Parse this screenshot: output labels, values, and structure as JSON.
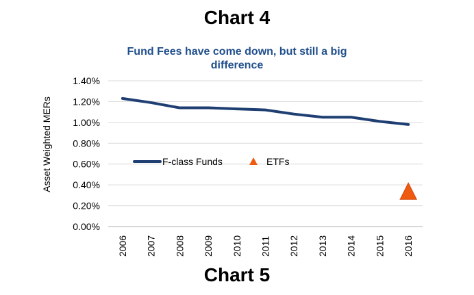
{
  "headings": {
    "top": "Chart 4",
    "bottom": "Chart 5"
  },
  "chart_data": {
    "type": "line",
    "title_lines": [
      "Fund Fees have come down, but still a big",
      "difference"
    ],
    "xlabel": "",
    "ylabel": "Asset Weighted MERs",
    "categories": [
      "2006",
      "2007",
      "2008",
      "2009",
      "2010",
      "2011",
      "2012",
      "2013",
      "2014",
      "2015",
      "2016"
    ],
    "ylim": [
      0,
      0.014
    ],
    "yticks": [
      "0.00%",
      "0.20%",
      "0.40%",
      "0.60%",
      "0.80%",
      "1.00%",
      "1.20%",
      "1.40%"
    ],
    "grid": true,
    "legend_placement": "center-left",
    "series": [
      {
        "name": "F-class Funds",
        "kind": "line",
        "color": "#1f3f73",
        "values": [
          0.0123,
          0.0119,
          0.0114,
          0.0114,
          0.0113,
          0.0112,
          0.0108,
          0.0105,
          0.0105,
          0.0101,
          0.0098
        ]
      },
      {
        "name": "ETFs",
        "kind": "marker",
        "marker": "triangle",
        "color": "#f05a10",
        "points": [
          {
            "category": "2016",
            "value": 0.0034
          }
        ]
      }
    ]
  }
}
